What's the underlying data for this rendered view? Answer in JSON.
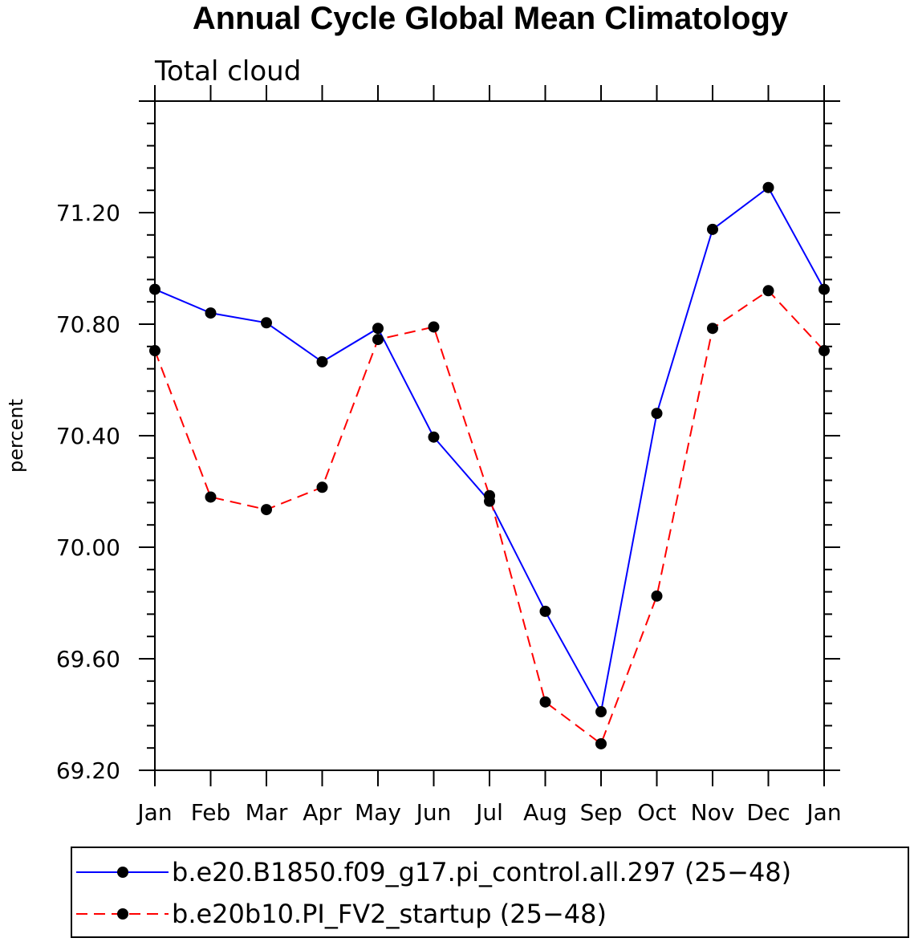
{
  "chart_data": {
    "type": "line",
    "title": "Annual Cycle Global Mean Climatology",
    "subtitle": "Total cloud",
    "xlabel": "",
    "ylabel": "percent",
    "categories": [
      "Jan",
      "Feb",
      "Mar",
      "Apr",
      "May",
      "Jun",
      "Jul",
      "Aug",
      "Sep",
      "Oct",
      "Nov",
      "Dec",
      "Jan"
    ],
    "ylim": [
      69.2,
      71.6
    ],
    "yticks": [
      "69.20",
      "69.60",
      "70.00",
      "70.40",
      "70.80",
      "71.20"
    ],
    "grid": false,
    "legend_position": "bottom",
    "series": [
      {
        "name": "b.e20.B1850.f09_g17.pi_control.all.297 (25−48)",
        "color": "#0000ff",
        "style": "solid",
        "values": [
          70.925,
          70.84,
          70.805,
          70.665,
          70.785,
          70.395,
          70.165,
          69.77,
          69.41,
          70.48,
          71.14,
          71.29,
          70.925
        ]
      },
      {
        "name": "b.e20b10.PI_FV2_startup (25−48)",
        "color": "#ff0000",
        "style": "dashed",
        "values": [
          70.705,
          70.18,
          70.135,
          70.215,
          70.745,
          70.79,
          70.185,
          69.445,
          69.295,
          69.825,
          70.785,
          70.92,
          70.705
        ]
      }
    ]
  }
}
